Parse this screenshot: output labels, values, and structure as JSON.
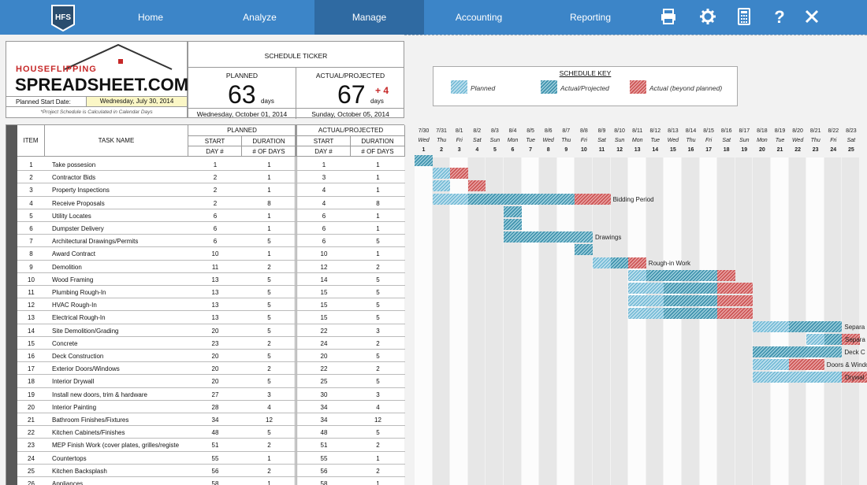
{
  "nav": {
    "logo_text": "HFS",
    "items": [
      "Home",
      "Analyze",
      "Manage",
      "Accounting",
      "Reporting"
    ],
    "active": "Manage",
    "icons": [
      "print-icon",
      "gear-icon",
      "calculator-icon",
      "help-icon",
      "close-icon"
    ]
  },
  "brand": {
    "line1": "HOUSEFLIPPING",
    "line2": "SPREADSHEET.COM",
    "planned_start_label": "Planned Start Date:",
    "planned_start_value": "Wednesday, July 30, 2014",
    "note": "*Project Schedule is Calculated in Calendar Days"
  },
  "ticker": {
    "title": "SCHEDULE TICKER",
    "planned_label": "PLANNED",
    "planned_days": "63",
    "planned_unit": "days",
    "planned_date": "Wednesday, October 01, 2014",
    "actual_label": "ACTUAL/PROJECTED",
    "actual_days": "67",
    "actual_delta": "+ 4",
    "actual_unit": "days",
    "actual_date": "Sunday, October 05, 2014"
  },
  "key": {
    "title": "SCHEDULE KEY",
    "planned": "Planned",
    "actual": "Actual/Projected",
    "beyond": "Actual (beyond planned)"
  },
  "table": {
    "item_header": "ITEM",
    "task_header": "TASK NAME",
    "planned_header": "PLANNED",
    "actual_header": "ACTUAL/PROJECTED",
    "start_header": "START",
    "duration_header": "DURATION",
    "day_header": "DAY #",
    "days_header": "# OF DAYS",
    "rows": [
      {
        "item": "1",
        "task": "Take possesion",
        "ps": "1",
        "pd": "1",
        "as": "1",
        "ad": "1"
      },
      {
        "item": "2",
        "task": "Contractor Bids",
        "ps": "2",
        "pd": "1",
        "as": "3",
        "ad": "1"
      },
      {
        "item": "3",
        "task": "Property Inspections",
        "ps": "2",
        "pd": "1",
        "as": "4",
        "ad": "1"
      },
      {
        "item": "4",
        "task": "Receive Proposals",
        "ps": "2",
        "pd": "8",
        "as": "4",
        "ad": "8"
      },
      {
        "item": "5",
        "task": "Utility Locates",
        "ps": "6",
        "pd": "1",
        "as": "6",
        "ad": "1"
      },
      {
        "item": "6",
        "task": "Dumpster Delivery",
        "ps": "6",
        "pd": "1",
        "as": "6",
        "ad": "1"
      },
      {
        "item": "7",
        "task": "Architectural Drawings/Permits",
        "ps": "6",
        "pd": "5",
        "as": "6",
        "ad": "5"
      },
      {
        "item": "8",
        "task": "Award Contract",
        "ps": "10",
        "pd": "1",
        "as": "10",
        "ad": "1"
      },
      {
        "item": "9",
        "task": "Demolition",
        "ps": "11",
        "pd": "2",
        "as": "12",
        "ad": "2"
      },
      {
        "item": "10",
        "task": "Wood Framing",
        "ps": "13",
        "pd": "5",
        "as": "14",
        "ad": "5"
      },
      {
        "item": "11",
        "task": "Plumbing Rough-In",
        "ps": "13",
        "pd": "5",
        "as": "15",
        "ad": "5"
      },
      {
        "item": "12",
        "task": "HVAC Rough-In",
        "ps": "13",
        "pd": "5",
        "as": "15",
        "ad": "5"
      },
      {
        "item": "13",
        "task": "Electrical Rough-In",
        "ps": "13",
        "pd": "5",
        "as": "15",
        "ad": "5"
      },
      {
        "item": "14",
        "task": "Site Demolition/Grading",
        "ps": "20",
        "pd": "5",
        "as": "22",
        "ad": "3"
      },
      {
        "item": "15",
        "task": "Concrete",
        "ps": "23",
        "pd": "2",
        "as": "24",
        "ad": "2"
      },
      {
        "item": "16",
        "task": "Deck Construction",
        "ps": "20",
        "pd": "5",
        "as": "20",
        "ad": "5"
      },
      {
        "item": "17",
        "task": "Exterior Doors/Windows",
        "ps": "20",
        "pd": "2",
        "as": "22",
        "ad": "2"
      },
      {
        "item": "18",
        "task": "Interior Drywall",
        "ps": "20",
        "pd": "5",
        "as": "25",
        "ad": "5"
      },
      {
        "item": "19",
        "task": "Install new doors, trim & hardware",
        "ps": "27",
        "pd": "3",
        "as": "30",
        "ad": "3"
      },
      {
        "item": "20",
        "task": "Interior Painting",
        "ps": "28",
        "pd": "4",
        "as": "34",
        "ad": "4"
      },
      {
        "item": "21",
        "task": "Bathroom Finishes/Fixtures",
        "ps": "34",
        "pd": "12",
        "as": "34",
        "ad": "12"
      },
      {
        "item": "22",
        "task": "Kitchen Cabinets/Finishes",
        "ps": "48",
        "pd": "5",
        "as": "48",
        "ad": "5"
      },
      {
        "item": "23",
        "task": "MEP Finish Work (cover plates, grilles/registe",
        "ps": "51",
        "pd": "2",
        "as": "51",
        "ad": "2"
      },
      {
        "item": "24",
        "task": "Countertops",
        "ps": "55",
        "pd": "1",
        "as": "55",
        "ad": "1"
      },
      {
        "item": "25",
        "task": "Kitchen Backsplash",
        "ps": "56",
        "pd": "2",
        "as": "56",
        "ad": "2"
      },
      {
        "item": "26",
        "task": "Appliances",
        "ps": "58",
        "pd": "1",
        "as": "58",
        "ad": "1"
      }
    ]
  },
  "gantt": {
    "days": [
      {
        "date": "7/30",
        "dow": "Wed",
        "n": "1"
      },
      {
        "date": "7/31",
        "dow": "Thu",
        "n": "2"
      },
      {
        "date": "8/1",
        "dow": "Fri",
        "n": "3"
      },
      {
        "date": "8/2",
        "dow": "Sat",
        "n": "4"
      },
      {
        "date": "8/3",
        "dow": "Sun",
        "n": "5"
      },
      {
        "date": "8/4",
        "dow": "Mon",
        "n": "6"
      },
      {
        "date": "8/5",
        "dow": "Tue",
        "n": "7"
      },
      {
        "date": "8/6",
        "dow": "Wed",
        "n": "8"
      },
      {
        "date": "8/7",
        "dow": "Thu",
        "n": "9"
      },
      {
        "date": "8/8",
        "dow": "Fri",
        "n": "10"
      },
      {
        "date": "8/9",
        "dow": "Sat",
        "n": "11"
      },
      {
        "date": "8/10",
        "dow": "Sun",
        "n": "12"
      },
      {
        "date": "8/11",
        "dow": "Mon",
        "n": "13"
      },
      {
        "date": "8/12",
        "dow": "Tue",
        "n": "14"
      },
      {
        "date": "8/13",
        "dow": "Wed",
        "n": "15"
      },
      {
        "date": "8/14",
        "dow": "Thu",
        "n": "16"
      },
      {
        "date": "8/15",
        "dow": "Fri",
        "n": "17"
      },
      {
        "date": "8/16",
        "dow": "Sat",
        "n": "18"
      },
      {
        "date": "8/17",
        "dow": "Sun",
        "n": "19"
      },
      {
        "date": "8/18",
        "dow": "Mon",
        "n": "20"
      },
      {
        "date": "8/19",
        "dow": "Tue",
        "n": "21"
      },
      {
        "date": "8/20",
        "dow": "Wed",
        "n": "22"
      },
      {
        "date": "8/21",
        "dow": "Thu",
        "n": "23"
      },
      {
        "date": "8/22",
        "dow": "Fri",
        "n": "24"
      },
      {
        "date": "8/23",
        "dow": "Sat",
        "n": "25"
      }
    ],
    "labels": [
      {
        "row": 4,
        "text": "Bidding Period"
      },
      {
        "row": 7,
        "text": "Drawings"
      },
      {
        "row": 9,
        "text": "Rough-in Work"
      },
      {
        "row": 14,
        "text": "Separa"
      },
      {
        "row": 15,
        "text": "Separa"
      },
      {
        "row": 16,
        "text": "Deck C"
      },
      {
        "row": 17,
        "text": "Doors & Windows"
      },
      {
        "row": 18,
        "text": "Drywal"
      }
    ]
  },
  "colors": {
    "nav_bg": "#3c85c8",
    "nav_active": "#2f6aa2",
    "planned": "#6fb8d4",
    "actual": "#3f92ad",
    "beyond": "#c55"
  }
}
